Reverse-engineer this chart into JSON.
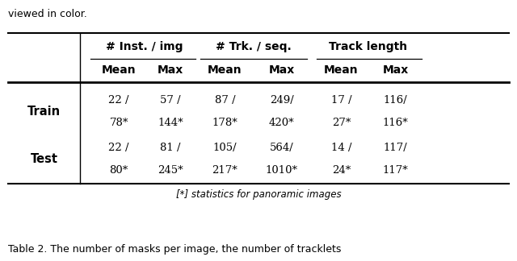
{
  "title_text": "viewed in color.",
  "caption": "Table 2. The number of masks per image, the number of tracklets",
  "footnote": "[*] statistics for panoramic images",
  "header_groups": [
    "# Inst. / img",
    "# Trk. / seq.",
    "Track length"
  ],
  "subheaders": [
    "Mean",
    "Max",
    "Mean",
    "Max",
    "Mean",
    "Max"
  ],
  "rows": [
    [
      "22 /",
      "57 /",
      "87 /",
      "249/",
      "17 /",
      "116/"
    ],
    [
      "78*",
      "144*",
      "178*",
      "420*",
      "27*",
      "116*"
    ],
    [
      "22 /",
      "81 /",
      "105/",
      "564/",
      "14 /",
      "117/"
    ],
    [
      "80*",
      "245*",
      "217*",
      "1010*",
      "24*",
      "117*"
    ]
  ],
  "row_labels": [
    "Train",
    "Test"
  ],
  "bg_color": "#ffffff",
  "text_color": "#000000",
  "title_fontsize": 9,
  "header_fontsize": 10,
  "data_fontsize": 9.5,
  "caption_fontsize": 9,
  "footnote_fontsize": 8.5,
  "row_label_fontsize": 10.5
}
